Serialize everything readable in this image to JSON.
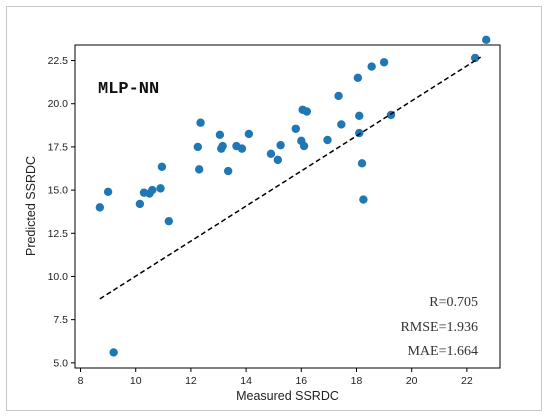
{
  "chart_data": {
    "type": "scatter",
    "xlabel": "Measured SSRDC",
    "ylabel": "Predicted SSRDC",
    "xlim": [
      7.8,
      23.2
    ],
    "ylim": [
      4.7,
      23.4
    ],
    "x_ticks": [
      8,
      10,
      12,
      14,
      16,
      18,
      20,
      22
    ],
    "x_tick_labels": [
      "8",
      "10",
      "12",
      "14",
      "16",
      "18",
      "20",
      "22"
    ],
    "y_ticks": [
      5,
      7.5,
      10,
      12.5,
      15,
      17.5,
      20,
      22.5
    ],
    "y_tick_labels": [
      "5.0",
      "7.5",
      "10.0",
      "12.5",
      "15.0",
      "17.5",
      "20.0",
      "22.5"
    ],
    "points": [
      [
        8.7,
        14.0
      ],
      [
        9.0,
        14.9
      ],
      [
        9.2,
        5.6
      ],
      [
        10.15,
        14.2
      ],
      [
        10.3,
        14.85
      ],
      [
        10.5,
        14.8
      ],
      [
        10.6,
        15.0
      ],
      [
        10.9,
        15.1
      ],
      [
        10.95,
        16.35
      ],
      [
        11.2,
        13.2
      ],
      [
        12.25,
        17.5
      ],
      [
        12.3,
        16.2
      ],
      [
        12.35,
        18.9
      ],
      [
        13.05,
        18.2
      ],
      [
        13.1,
        17.4
      ],
      [
        13.15,
        17.55
      ],
      [
        13.35,
        16.1
      ],
      [
        13.65,
        17.55
      ],
      [
        13.85,
        17.4
      ],
      [
        14.1,
        18.25
      ],
      [
        14.9,
        17.1
      ],
      [
        15.15,
        16.75
      ],
      [
        15.25,
        17.6
      ],
      [
        15.8,
        18.55
      ],
      [
        16.0,
        17.85
      ],
      [
        16.1,
        17.55
      ],
      [
        16.05,
        19.65
      ],
      [
        16.2,
        19.55
      ],
      [
        16.95,
        17.9
      ],
      [
        17.35,
        20.45
      ],
      [
        17.45,
        18.8
      ],
      [
        18.05,
        21.5
      ],
      [
        18.1,
        19.3
      ],
      [
        18.1,
        18.3
      ],
      [
        18.2,
        16.55
      ],
      [
        18.25,
        14.45
      ],
      [
        18.55,
        22.15
      ],
      [
        19.0,
        22.4
      ],
      [
        19.25,
        19.35
      ],
      [
        22.3,
        22.65
      ],
      [
        22.7,
        23.7
      ]
    ],
    "fit_line": {
      "x": [
        8.7,
        22.5
      ],
      "y": [
        8.7,
        22.7
      ]
    },
    "point_color": "#1f77b4",
    "grid": false,
    "annotations": {
      "model": "MLP-NN",
      "r": "R=0.705",
      "rmse": "RMSE=1.936",
      "mae": "MAE=1.664"
    }
  }
}
